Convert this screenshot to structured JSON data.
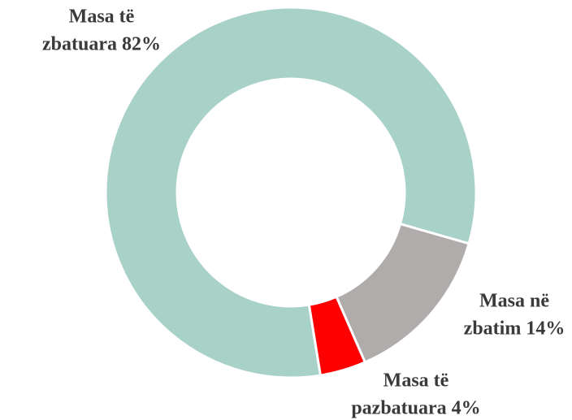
{
  "chart_data": {
    "type": "donut",
    "labels": [
      [
        "Masa të",
        "zbatuara 82%"
      ],
      [
        "Masa në",
        "zbatim 14%"
      ],
      [
        "Masa të",
        "pazbatuara 4%"
      ]
    ],
    "values": [
      82,
      14,
      4
    ],
    "colors": [
      "#a8d1c8",
      "#b0acab",
      "#ff0000"
    ]
  }
}
